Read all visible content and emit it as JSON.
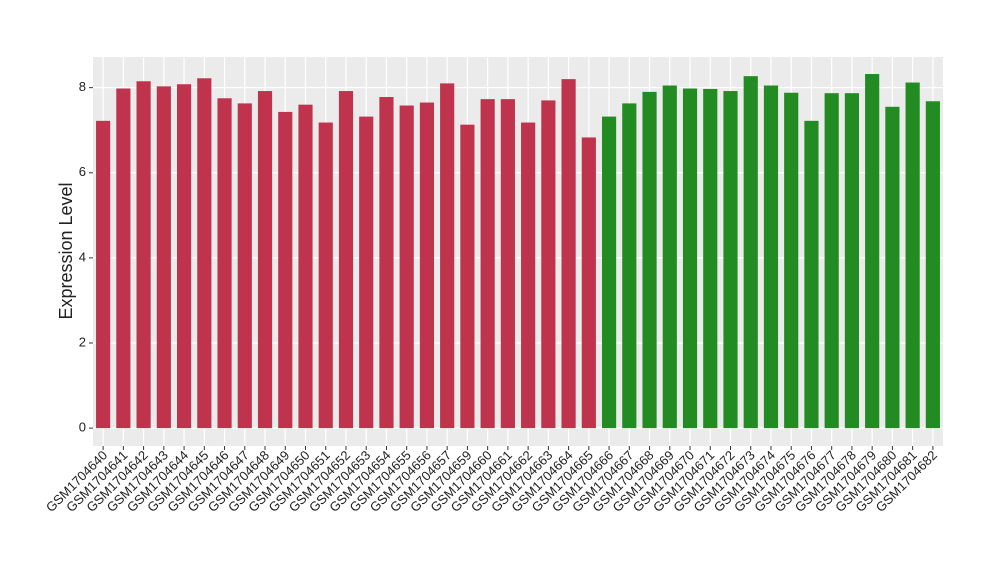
{
  "chart_data": {
    "type": "bar",
    "y_label": "Expression Level",
    "categories": [
      "GSM1704640",
      "GSM1704641",
      "GSM1704642",
      "GSM1704643",
      "GSM1704644",
      "GSM1704645",
      "GSM1704646",
      "GSM1704647",
      "GSM1704648",
      "GSM1704649",
      "GSM1704650",
      "GSM1704651",
      "GSM1704652",
      "GSM1704653",
      "GSM1704654",
      "GSM1704655",
      "GSM1704656",
      "GSM1704657",
      "GSM1704659",
      "GSM1704660",
      "GSM1704661",
      "GSM1704662",
      "GSM1704663",
      "GSM1704664",
      "GSM1704665",
      "GSM1704666",
      "GSM1704667",
      "GSM1704668",
      "GSM1704669",
      "GSM1704670",
      "GSM1704671",
      "GSM1704672",
      "GSM1704673",
      "GSM1704674",
      "GSM1704675",
      "GSM1704676",
      "GSM1704677",
      "GSM1704678",
      "GSM1704679",
      "GSM1704680",
      "GSM1704681",
      "GSM1704682"
    ],
    "values": [
      7.22,
      7.98,
      8.15,
      8.03,
      8.08,
      8.22,
      7.75,
      7.63,
      7.92,
      7.43,
      7.6,
      7.18,
      7.92,
      7.32,
      7.78,
      7.58,
      7.65,
      8.1,
      7.13,
      7.73,
      7.73,
      7.18,
      7.7,
      8.2,
      6.83,
      7.32,
      7.63,
      7.9,
      8.05,
      7.98,
      7.97,
      7.92,
      8.27,
      8.05,
      7.88,
      7.22,
      7.87,
      7.87,
      8.32,
      7.55,
      8.12,
      7.68
    ],
    "colors": [
      "#c0334d",
      "#c0334d",
      "#c0334d",
      "#c0334d",
      "#c0334d",
      "#c0334d",
      "#c0334d",
      "#c0334d",
      "#c0334d",
      "#c0334d",
      "#c0334d",
      "#c0334d",
      "#c0334d",
      "#c0334d",
      "#c0334d",
      "#c0334d",
      "#c0334d",
      "#c0334d",
      "#c0334d",
      "#c0334d",
      "#c0334d",
      "#c0334d",
      "#c0334d",
      "#c0334d",
      "#c0334d",
      "#228b22",
      "#228b22",
      "#228b22",
      "#228b22",
      "#228b22",
      "#228b22",
      "#228b22",
      "#228b22",
      "#228b22",
      "#228b22",
      "#228b22",
      "#228b22",
      "#228b22",
      "#228b22",
      "#228b22",
      "#228b22",
      "#228b22"
    ],
    "ylim": [
      -0.42,
      8.72
    ],
    "yticks": [
      0,
      2,
      4,
      6,
      8
    ],
    "grid": true
  }
}
